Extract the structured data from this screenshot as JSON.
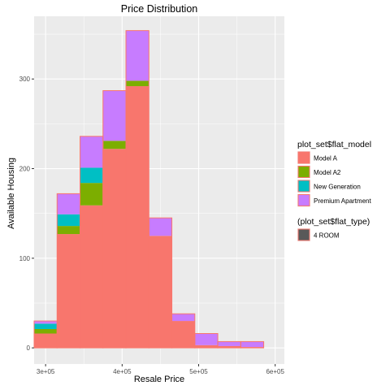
{
  "chart_data": {
    "type": "bar",
    "subtype": "stacked-histogram",
    "title": "Price Distribution",
    "xlabel": "Resale Price",
    "ylabel": "Available Housing",
    "xlim": [
      285000,
      612000
    ],
    "ylim": [
      -18,
      370
    ],
    "x_ticks": [
      300000,
      400000,
      500000,
      600000
    ],
    "x_tick_labels": [
      "3e+05",
      "4e+05",
      "5e+05",
      "6e+05"
    ],
    "y_ticks": [
      0,
      100,
      200,
      300
    ],
    "y_tick_labels": [
      "0",
      "100",
      "200",
      "300"
    ],
    "bin_width": 30000,
    "bins": [
      {
        "x_start": 285000,
        "x_end": 315000
      },
      {
        "x_start": 315000,
        "x_end": 345000
      },
      {
        "x_start": 345000,
        "x_end": 375000
      },
      {
        "x_start": 375000,
        "x_end": 405000
      },
      {
        "x_start": 405000,
        "x_end": 435000
      },
      {
        "x_start": 435000,
        "x_end": 465000
      },
      {
        "x_start": 465000,
        "x_end": 495000
      },
      {
        "x_start": 495000,
        "x_end": 525000
      },
      {
        "x_start": 525000,
        "x_end": 555000
      },
      {
        "x_start": 555000,
        "x_end": 585000
      }
    ],
    "series": [
      {
        "name": "Model A",
        "color": "#F8766D",
        "values": [
          16,
          127,
          159,
          222,
          292,
          125,
          30,
          3,
          2,
          1
        ]
      },
      {
        "name": "Model A2",
        "color": "#7CAE00",
        "values": [
          5,
          9,
          25,
          9,
          6,
          0,
          0,
          0,
          0,
          0
        ]
      },
      {
        "name": "New Generation",
        "color": "#00BFC4",
        "values": [
          6,
          13,
          17,
          0,
          0,
          0,
          0,
          0,
          0,
          0
        ]
      },
      {
        "name": "Premium Apartment",
        "color": "#C77CFF",
        "values": [
          3,
          23,
          35,
          56,
          56,
          20,
          8,
          13,
          5,
          6
        ]
      }
    ],
    "outline_color": "#F8766D",
    "legend": {
      "placement": "right",
      "fill_title": "plot_set$flat_model",
      "fill_items": [
        "Model A",
        "Model A2",
        "New Generation",
        "Premium Apartment"
      ],
      "color_title": "(plot_set$flat_type)",
      "color_items": [
        "4 ROOM"
      ],
      "color_swatch_fill": "#595959"
    },
    "grid": true,
    "panel_background": "#EBEBEB",
    "grid_color": "#FFFFFF"
  }
}
